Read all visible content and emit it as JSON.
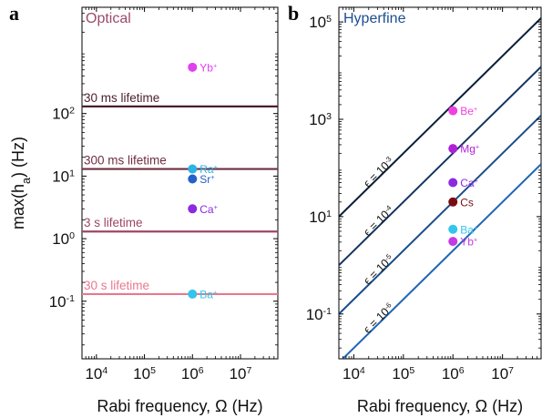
{
  "panel_letters": {
    "a": "a",
    "b": "b"
  },
  "chart_data": [
    {
      "type": "scatter",
      "panel": "a",
      "title": "Optical",
      "title_color": "#9b4a6a",
      "xlabel": "Rabi frequency, Ω (Hz)",
      "ylabel": "max(h_a) (Hz)",
      "x_scale": "log",
      "y_scale": "log",
      "xlim": [
        5000,
        60000000
      ],
      "ylim": [
        0.012,
        5000
      ],
      "x_ticks": [
        10000,
        100000,
        1000000,
        10000000
      ],
      "y_ticks": [
        0.1,
        1,
        10,
        100
      ],
      "grid": false,
      "hlines": [
        {
          "label": "30 ms lifetime",
          "y": 130,
          "color": "#4a1f2e"
        },
        {
          "label": "300 ms lifetime",
          "y": 13,
          "color": "#6e2f40"
        },
        {
          "label": "3 s lifetime",
          "y": 1.3,
          "color": "#9e4660"
        },
        {
          "label": "30 s lifetime",
          "y": 0.13,
          "color": "#e8788e"
        }
      ],
      "points": [
        {
          "label": "Yb",
          "charge": "+",
          "x": 1000000,
          "y": 550,
          "color": "#e040f0"
        },
        {
          "label": "Ra",
          "charge": "+",
          "x": 1000000,
          "y": 13,
          "color": "#2ab5e8"
        },
        {
          "label": "Sr",
          "charge": "+",
          "x": 1000000,
          "y": 9,
          "color": "#2462c8"
        },
        {
          "label": "Ca",
          "charge": "+",
          "x": 1000000,
          "y": 3,
          "color": "#8a2be2"
        },
        {
          "label": "Ba",
          "charge": "+",
          "x": 1000000,
          "y": 0.13,
          "color": "#33c5ec"
        }
      ]
    },
    {
      "type": "line",
      "panel": "b",
      "title": "Hyperfine",
      "title_color": "#1d4e8f",
      "xlabel": "Rabi frequency, Ω (Hz)",
      "ylabel": "",
      "x_scale": "log",
      "y_scale": "log",
      "xlim": [
        5000,
        60000000
      ],
      "ylim": [
        0.012,
        200000
      ],
      "x_ticks": [
        10000,
        100000,
        1000000,
        10000000
      ],
      "y_ticks": [
        0.1,
        10,
        1000,
        100000
      ],
      "grid": false,
      "series": [
        {
          "name": "ϵ = 10^-3",
          "label_base": "ϵ = 10",
          "label_exp": "-3",
          "scale": 0.002,
          "color": "#0b1f3a",
          "label_x": 15000
        },
        {
          "name": "ϵ = 10^-4",
          "label_base": "ϵ = 10",
          "label_exp": "-4",
          "scale": 0.0002,
          "color": "#13355f",
          "label_x": 15000
        },
        {
          "name": "ϵ = 10^-5",
          "label_base": "ϵ = 10",
          "label_exp": "-5",
          "scale": 2e-05,
          "color": "#1a4d8a",
          "label_x": 15000
        },
        {
          "name": "ϵ = 10^-6",
          "label_base": "ϵ = 10",
          "label_exp": "-6",
          "scale": 2e-06,
          "color": "#1f66b3",
          "label_x": 15000
        }
      ],
      "points": [
        {
          "label": "Be",
          "charge": "+",
          "x": 1000000,
          "y": 1500,
          "color": "#f040e0"
        },
        {
          "label": "Mg",
          "charge": "+",
          "x": 1000000,
          "y": 250,
          "color": "#b020d8"
        },
        {
          "label": "Ca",
          "charge": "+",
          "x": 1000000,
          "y": 50,
          "color": "#8a2be2"
        },
        {
          "label": "Cs",
          "charge": "",
          "x": 1000000,
          "y": 20,
          "color": "#7a0d14"
        },
        {
          "label": "Ba",
          "charge": "+",
          "x": 1000000,
          "y": 5.5,
          "color": "#33c5ec"
        },
        {
          "label": "Yb",
          "charge": "+",
          "x": 1000000,
          "y": 3.1,
          "color": "#c43be6"
        }
      ]
    }
  ]
}
